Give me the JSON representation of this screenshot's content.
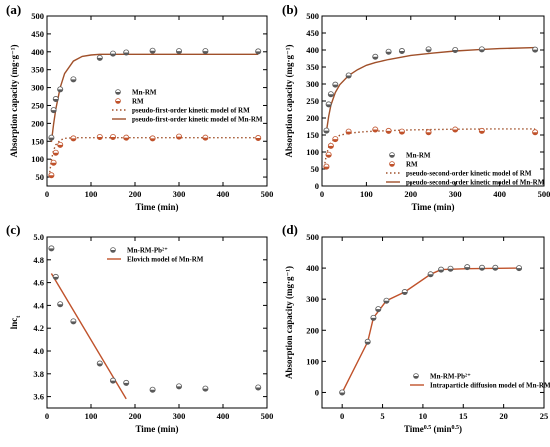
{
  "chart_data": [
    {
      "panel_label": "(a)",
      "type": "scatter",
      "xlabel": "Time (min)",
      "ylabel": "Absorption capacity (mg·g⁻¹)",
      "xlim": [
        0,
        500
      ],
      "ylim": [
        25,
        500
      ],
      "xticks": [
        0,
        100,
        200,
        300,
        400,
        500
      ],
      "yticks": [
        50,
        100,
        150,
        200,
        250,
        300,
        350,
        400,
        450,
        500
      ],
      "legend_position": "center-right",
      "series": [
        {
          "name": "Mn-RM",
          "kind": "points",
          "marker": "half-circle",
          "color": "#5a5a5a",
          "x": [
            10,
            15,
            20,
            30,
            60,
            120,
            150,
            180,
            240,
            300,
            360,
            480
          ],
          "y": [
            160,
            237,
            268,
            295,
            323,
            383,
            395,
            398,
            403,
            402,
            402,
            401
          ]
        },
        {
          "name": "RM",
          "kind": "points",
          "marker": "half-circle",
          "color": "#c0522b",
          "x": [
            10,
            15,
            20,
            30,
            60,
            120,
            150,
            180,
            240,
            300,
            360,
            480
          ],
          "y": [
            55,
            90,
            118,
            140,
            158,
            162,
            162,
            160,
            158,
            163,
            160,
            159
          ]
        },
        {
          "name": "pseudo-first-order kinetic model of RM",
          "kind": "line",
          "style": "dotted",
          "color": "#a0502a",
          "x": [
            5,
            10,
            15,
            20,
            30,
            40,
            60,
            80,
            100,
            150,
            200,
            300,
            400,
            480
          ],
          "y": [
            52,
            98,
            125,
            140,
            153,
            158,
            160,
            160,
            160,
            160,
            160,
            160,
            160,
            160
          ]
        },
        {
          "name": "pseudo-first-order kinetic model of Mn-RM",
          "kind": "line",
          "style": "solid",
          "color": "#a0502a",
          "x": [
            10,
            15,
            20,
            30,
            40,
            60,
            80,
            100,
            120,
            150,
            200,
            300,
            400,
            480
          ],
          "y": [
            148,
            198,
            240,
            300,
            339,
            374,
            387,
            391,
            393,
            393,
            393,
            393,
            393,
            393
          ]
        }
      ]
    },
    {
      "panel_label": "(b)",
      "type": "scatter",
      "xlabel": "Time (min)",
      "ylabel": "Absorption capacity (mg·g⁻¹)",
      "xlim": [
        0,
        500
      ],
      "ylim": [
        0,
        500
      ],
      "xticks": [
        0,
        100,
        200,
        300,
        400,
        500
      ],
      "yticks": [
        0,
        50,
        100,
        150,
        200,
        250,
        300,
        350,
        400,
        450,
        500
      ],
      "legend_position": "center-right",
      "series": [
        {
          "name": "Mn-RM",
          "kind": "points",
          "marker": "half-circle",
          "color": "#5a5a5a",
          "x": [
            10,
            15,
            20,
            30,
            60,
            120,
            150,
            180,
            240,
            300,
            360,
            480
          ],
          "y": [
            163,
            240,
            270,
            298,
            325,
            380,
            395,
            397,
            402,
            400,
            402,
            401
          ]
        },
        {
          "name": "RM",
          "kind": "points",
          "marker": "half-circle",
          "color": "#c0522b",
          "x": [
            10,
            15,
            20,
            30,
            60,
            120,
            150,
            180,
            240,
            300,
            360,
            480
          ],
          "y": [
            57,
            92,
            118,
            138,
            160,
            166,
            162,
            160,
            158,
            166,
            162,
            158
          ]
        },
        {
          "name": "pseudo-second-order kinetic model of RM",
          "kind": "line",
          "style": "dotted",
          "color": "#a0502a",
          "x": [
            5,
            10,
            15,
            20,
            30,
            40,
            60,
            80,
            100,
            150,
            200,
            300,
            400,
            480
          ],
          "y": [
            55,
            92,
            114,
            127,
            141,
            149,
            155,
            158,
            160,
            163,
            165,
            167,
            168,
            168
          ]
        },
        {
          "name": "pseudo-second-order kinetic model of Mn-RM",
          "kind": "line",
          "style": "solid",
          "color": "#a0502a",
          "x": [
            10,
            15,
            20,
            30,
            40,
            60,
            80,
            100,
            120,
            150,
            200,
            250,
            300,
            350,
            400,
            480
          ],
          "y": [
            160,
            205,
            238,
            275,
            298,
            325,
            342,
            355,
            363,
            372,
            384,
            391,
            397,
            401,
            404,
            407
          ]
        }
      ]
    },
    {
      "panel_label": "(c)",
      "type": "scatter",
      "xlabel": "Time (min)",
      "ylabel": "lnc",
      "ylabel_sub": "t",
      "xlim": [
        0,
        500
      ],
      "ylim": [
        3.5,
        5.0
      ],
      "xticks": [
        0,
        100,
        200,
        300,
        400,
        500
      ],
      "yticks": [
        3.6,
        3.8,
        4.0,
        4.2,
        4.4,
        4.6,
        4.8,
        5.0
      ],
      "legend_position": "top-center",
      "series": [
        {
          "name": "Mn-RM-Pb²⁺",
          "kind": "points",
          "marker": "half-circle",
          "color": "#5a5a5a",
          "x": [
            10,
            20,
            30,
            60,
            120,
            150,
            180,
            240,
            300,
            360,
            480
          ],
          "y": [
            4.9,
            4.65,
            4.41,
            4.26,
            3.89,
            3.74,
            3.72,
            3.66,
            3.69,
            3.67,
            3.68
          ]
        },
        {
          "name": "Elovich model of Mn-RM",
          "kind": "line",
          "style": "solid",
          "color": "#c0522b",
          "x": [
            10,
            180
          ],
          "y": [
            4.68,
            3.58
          ]
        }
      ]
    },
    {
      "panel_label": "(d)",
      "type": "scatter",
      "xlabel": "Time",
      "xlabel_sup": "0.5",
      "xlabel_tail": " (min",
      "xlabel_tail_sup": "0.5",
      "xlabel_end": ")",
      "ylabel": "Absorption capacity (mg·g⁻¹)",
      "xlim": [
        -2.5,
        25
      ],
      "ylim": [
        -50,
        500
      ],
      "xticks": [
        0,
        5,
        10,
        15,
        20,
        25
      ],
      "yticks": [
        0,
        100,
        200,
        300,
        400,
        500
      ],
      "legend_position": "bottom-right",
      "series": [
        {
          "name": "Mn-RM-Pb²⁺",
          "kind": "points",
          "marker": "half-circle",
          "color": "#5a5a5a",
          "x": [
            0,
            3.16,
            3.87,
            4.47,
            5.48,
            7.75,
            10.95,
            12.25,
            13.42,
            15.49,
            17.32,
            18.97,
            21.91
          ],
          "y": [
            0,
            163,
            240,
            268,
            295,
            323,
            380,
            395,
            398,
            403,
            401,
            401,
            400
          ]
        },
        {
          "name": "Intraparticle diffusion model of Mn-RM",
          "kind": "line",
          "style": "solid",
          "color": "#c0522b",
          "x": [
            0,
            3.16,
            3.87,
            5.48,
            7.75,
            10.95,
            12.25,
            15.49,
            21.91
          ],
          "y": [
            0,
            163,
            240,
            295,
            323,
            380,
            395,
            398,
            400
          ]
        }
      ]
    }
  ]
}
